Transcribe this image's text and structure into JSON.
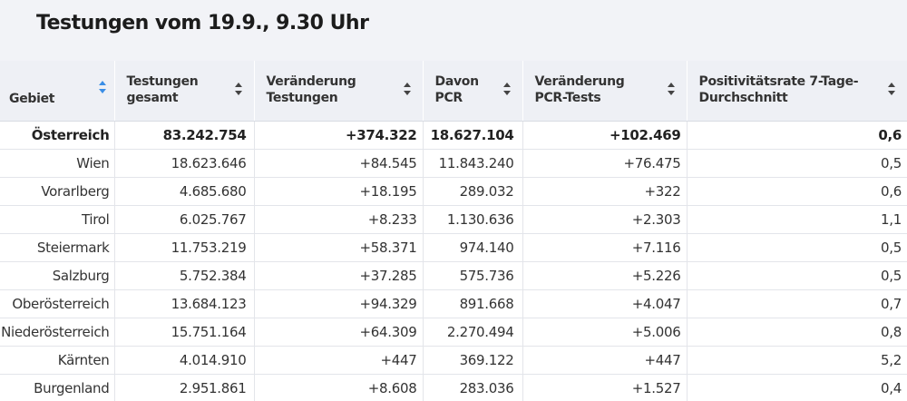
{
  "title": "Testungen vom 19.9., 9.30 Uhr",
  "columns": [
    {
      "label": "Gebiet",
      "sort_active": true
    },
    {
      "label": "Testungen gesamt",
      "sort_active": false
    },
    {
      "label": "Veränderung Testungen",
      "sort_active": false
    },
    {
      "label": "Davon PCR",
      "sort_active": false
    },
    {
      "label": "Veränderung PCR-Tests",
      "sort_active": false
    },
    {
      "label": "Positivitätsrate 7-Tage-Durchschnitt",
      "sort_active": false
    }
  ],
  "rows": [
    {
      "gebiet": "Österreich",
      "gesamt": "83.242.754",
      "veraenderung": "+374.322",
      "pcr": "18.627.104",
      "pcr_veraenderung": "+102.469",
      "rate": "0,6",
      "total": true
    },
    {
      "gebiet": "Wien",
      "gesamt": "18.623.646",
      "veraenderung": "+84.545",
      "pcr": "11.843.240",
      "pcr_veraenderung": "+76.475",
      "rate": "0,5"
    },
    {
      "gebiet": "Vorarlberg",
      "gesamt": "4.685.680",
      "veraenderung": "+18.195",
      "pcr": "289.032",
      "pcr_veraenderung": "+322",
      "rate": "0,6"
    },
    {
      "gebiet": "Tirol",
      "gesamt": "6.025.767",
      "veraenderung": "+8.233",
      "pcr": "1.130.636",
      "pcr_veraenderung": "+2.303",
      "rate": "1,1"
    },
    {
      "gebiet": "Steiermark",
      "gesamt": "11.753.219",
      "veraenderung": "+58.371",
      "pcr": "974.140",
      "pcr_veraenderung": "+7.116",
      "rate": "0,5"
    },
    {
      "gebiet": "Salzburg",
      "gesamt": "5.752.384",
      "veraenderung": "+37.285",
      "pcr": "575.736",
      "pcr_veraenderung": "+5.226",
      "rate": "0,5"
    },
    {
      "gebiet": "Oberösterreich",
      "gesamt": "13.684.123",
      "veraenderung": "+94.329",
      "pcr": "891.668",
      "pcr_veraenderung": "+4.047",
      "rate": "0,7"
    },
    {
      "gebiet": "Niederösterreich",
      "gesamt": "15.751.164",
      "veraenderung": "+64.309",
      "pcr": "2.270.494",
      "pcr_veraenderung": "+5.006",
      "rate": "0,8"
    },
    {
      "gebiet": "Kärnten",
      "gesamt": "4.014.910",
      "veraenderung": "+447",
      "pcr": "369.122",
      "pcr_veraenderung": "+447",
      "rate": "5,2"
    },
    {
      "gebiet": "Burgenland",
      "gesamt": "2.951.861",
      "veraenderung": "+8.608",
      "pcr": "283.036",
      "pcr_veraenderung": "+1.527",
      "rate": "0,4"
    }
  ],
  "colors": {
    "header_bg": "#eef0f5",
    "title_bg": "#f2f3f7",
    "sort_active": "#3a8ee6"
  }
}
